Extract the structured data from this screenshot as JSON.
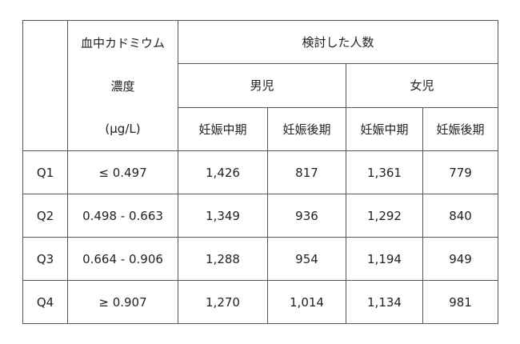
{
  "table": {
    "header": {
      "concentration": [
        "血中カドミウム",
        "濃度",
        "(μg/L)"
      ],
      "count": "検討した人数",
      "groups": [
        "男児",
        "女児"
      ],
      "periods": [
        "妊娠中期",
        "妊娠後期",
        "妊娠中期",
        "妊娠後期"
      ]
    },
    "rows": [
      [
        "Q1",
        "≤ 0.497",
        "1,426",
        "817",
        "1,361",
        "779"
      ],
      [
        "Q2",
        "0.498 - 0.663",
        "1,349",
        "936",
        "1,292",
        "840"
      ],
      [
        "Q3",
        "0.664 - 0.906",
        "1,288",
        "954",
        "1,194",
        "949"
      ],
      [
        "Q4",
        "≥ 0.907",
        "1,270",
        "1,014",
        "1,134",
        "981"
      ]
    ]
  }
}
